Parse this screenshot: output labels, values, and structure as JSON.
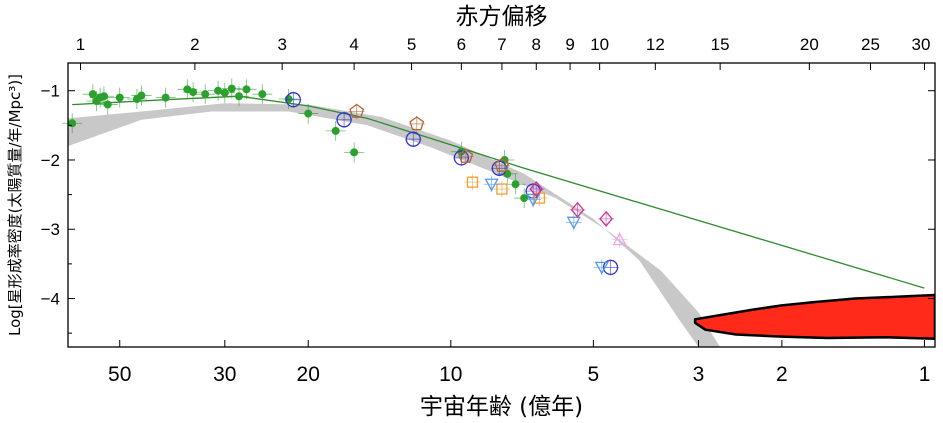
{
  "chart_data": {
    "type": "scatter",
    "x_top_label": "赤方偏移",
    "xlabel": "宇宙年齢 (億年)",
    "ylabel": "Log[星形成率密度(太陽質量/年/Mpc³)]",
    "xlim_age": [
      64.3,
      0.95
    ],
    "ylim": [
      -4.7,
      -0.6
    ],
    "y_ticks": [
      -1,
      -2,
      -3,
      -4
    ],
    "y_tick_labels": [
      "−1",
      "−2",
      "−3",
      "−4"
    ],
    "x_ticks_bottom": [
      50,
      30,
      20,
      10,
      5,
      3,
      2,
      1
    ],
    "x_ticks_bottom_labels": [
      "50",
      "30",
      "20",
      "10",
      "5",
      "3",
      "2",
      "1"
    ],
    "x_ticks_top": [
      {
        "label": "1",
        "age": 60.5
      },
      {
        "label": "2",
        "age": 34.7
      },
      {
        "label": "3",
        "age": 22.7
      },
      {
        "label": "4",
        "age": 16.0
      },
      {
        "label": "5",
        "age": 12.1
      },
      {
        "label": "6",
        "age": 9.5
      },
      {
        "label": "7",
        "age": 7.8
      },
      {
        "label": "8",
        "age": 6.6
      },
      {
        "label": "9",
        "age": 5.6
      },
      {
        "label": "10",
        "age": 4.85
      },
      {
        "label": "12",
        "age": 3.7
      },
      {
        "label": "15",
        "age": 2.7
      },
      {
        "label": "20",
        "age": 1.75
      },
      {
        "label": "25",
        "age": 1.3
      },
      {
        "label": "30",
        "age": 1.0
      }
    ],
    "series": [
      {
        "marker": "filled-circle",
        "color": "#2ca02c",
        "points": [
          [
            63,
            -1.47
          ],
          [
            57,
            -1.05
          ],
          [
            56,
            -1.15
          ],
          [
            55,
            -1.1
          ],
          [
            54,
            -1.08
          ],
          [
            53,
            -1.2
          ],
          [
            50,
            -1.1
          ],
          [
            46,
            -1.12
          ],
          [
            45,
            -1.07
          ],
          [
            40,
            -1.1
          ],
          [
            36,
            -0.98
          ],
          [
            35,
            -1.02
          ],
          [
            33,
            -1.05
          ],
          [
            31,
            -1.0
          ],
          [
            30,
            -1.03
          ],
          [
            29,
            -0.97
          ],
          [
            28,
            -1.08
          ],
          [
            27,
            -0.98
          ],
          [
            25,
            -1.05
          ],
          [
            22,
            -1.12
          ],
          [
            20,
            -1.33
          ],
          [
            17.5,
            -1.58
          ],
          [
            16,
            -1.89
          ],
          [
            9.5,
            -1.88
          ],
          [
            7.7,
            -2.0
          ],
          [
            7.6,
            -2.2
          ],
          [
            7.3,
            -2.35
          ],
          [
            7.0,
            -2.55
          ]
        ]
      },
      {
        "marker": "open-circle",
        "color": "#3333cc",
        "points": [
          [
            21.5,
            -1.13
          ],
          [
            16.8,
            -1.42
          ],
          [
            12.0,
            -1.7
          ],
          [
            9.5,
            -1.97
          ],
          [
            7.9,
            -2.12
          ],
          [
            6.7,
            -2.45
          ],
          [
            4.6,
            -3.55
          ]
        ]
      },
      {
        "marker": "open-pentagon",
        "color": "#b5653d",
        "points": [
          [
            15.8,
            -1.3
          ],
          [
            11.8,
            -1.48
          ],
          [
            9.3,
            -1.95
          ],
          [
            7.8,
            -2.08
          ]
        ]
      },
      {
        "marker": "open-square",
        "color": "#f0a030",
        "points": [
          [
            9.0,
            -2.32
          ],
          [
            7.8,
            -2.42
          ],
          [
            6.5,
            -2.55
          ]
        ]
      },
      {
        "marker": "open-triangle-down",
        "color": "#5599ee",
        "points": [
          [
            8.2,
            -2.35
          ],
          [
            6.7,
            -2.57
          ],
          [
            5.5,
            -2.9
          ],
          [
            4.8,
            -3.55
          ]
        ]
      },
      {
        "marker": "open-diamond",
        "color": "#cc3399",
        "points": [
          [
            6.6,
            -2.42
          ],
          [
            5.4,
            -2.72
          ],
          [
            4.7,
            -2.85
          ]
        ]
      },
      {
        "marker": "open-triangle-up",
        "color": "#f0a8e8",
        "points": [
          [
            4.4,
            -3.15
          ]
        ]
      }
    ],
    "fit_line": {
      "color": "#2e8b2e",
      "points": [
        [
          63,
          -1.2
        ],
        [
          40,
          -1.13
        ],
        [
          28,
          -1.08
        ],
        [
          20,
          -1.22
        ],
        [
          15,
          -1.4
        ],
        [
          10,
          -1.78
        ],
        [
          7,
          -2.12
        ],
        [
          1.0,
          -3.85
        ]
      ]
    },
    "grey_band": {
      "color": "#c8c8c8",
      "upper": [
        [
          64.3,
          -1.4
        ],
        [
          45,
          -1.3
        ],
        [
          30,
          -1.18
        ],
        [
          20,
          -1.2
        ],
        [
          14,
          -1.38
        ],
        [
          10,
          -1.72
        ],
        [
          7,
          -2.2
        ],
        [
          5,
          -2.85
        ],
        [
          4,
          -3.45
        ],
        [
          3.3,
          -4.3
        ],
        [
          3.0,
          -4.7
        ]
      ],
      "lower": [
        [
          2.7,
          -4.7
        ],
        [
          3.0,
          -4.2
        ],
        [
          3.6,
          -3.6
        ],
        [
          4.6,
          -3.05
        ],
        [
          6.0,
          -2.55
        ],
        [
          8.0,
          -2.2
        ],
        [
          11,
          -1.82
        ],
        [
          15,
          -1.5
        ],
        [
          22,
          -1.3
        ],
        [
          32,
          -1.3
        ],
        [
          45,
          -1.42
        ],
        [
          64.3,
          -1.8
        ]
      ]
    },
    "red_region": {
      "color": "#ff2a1a",
      "edge_color": "#000000",
      "upper": [
        [
          3.05,
          -4.3
        ],
        [
          2.7,
          -4.24
        ],
        [
          2.3,
          -4.16
        ],
        [
          2.0,
          -4.1
        ],
        [
          1.7,
          -4.05
        ],
        [
          1.4,
          -4.0
        ],
        [
          1.1,
          -3.97
        ],
        [
          0.95,
          -3.95
        ]
      ],
      "lower": [
        [
          0.95,
          -4.58
        ],
        [
          1.2,
          -4.56
        ],
        [
          1.6,
          -4.57
        ],
        [
          2.0,
          -4.55
        ],
        [
          2.5,
          -4.52
        ],
        [
          2.9,
          -4.45
        ],
        [
          3.05,
          -4.35
        ]
      ]
    }
  }
}
